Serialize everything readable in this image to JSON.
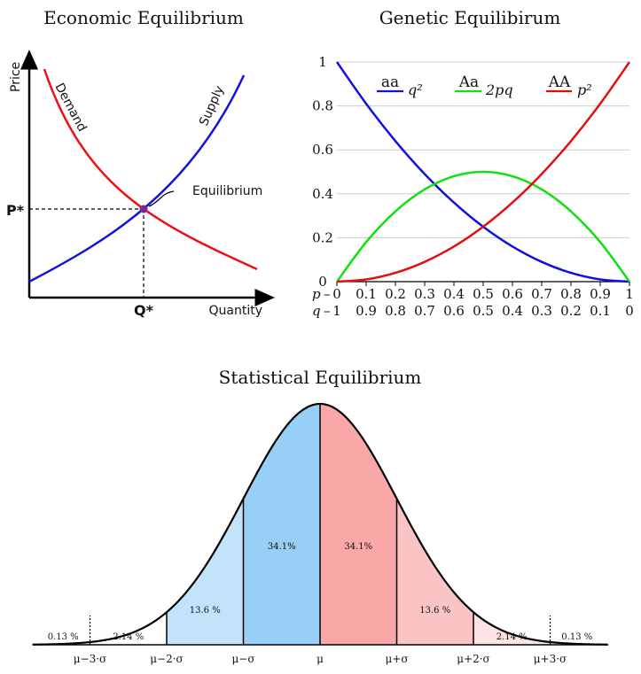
{
  "chart_data": [
    {
      "type": "line",
      "title": "Economic Equilibrium",
      "xlabel": "Quantity",
      "ylabel": "Price",
      "series": [
        {
          "name": "Demand",
          "color": "#ee1111"
        },
        {
          "name": "Supply",
          "color": "#1111dd"
        }
      ],
      "equilibrium_label": "Equilibrium",
      "price_marker": "P*",
      "quantity_marker": "Q*",
      "equilibrium_color": "#7a2a8f"
    },
    {
      "type": "line",
      "title": "Genetic Equilibirum",
      "x": [
        0,
        0.1,
        0.2,
        0.3,
        0.4,
        0.5,
        0.6,
        0.7,
        0.8,
        0.9,
        1
      ],
      "ylim": [
        0,
        1
      ],
      "y_ticks": [
        "0",
        "0.2",
        "0.4",
        "0.6",
        "0.8",
        "1"
      ],
      "p_row_label": "p",
      "q_row_label": "q",
      "p_ticks": [
        "0",
        "0.1",
        "0.2",
        "0.3",
        "0.4",
        "0.5",
        "0.6",
        "0.7",
        "0.8",
        "0.9",
        "1"
      ],
      "q_ticks": [
        "1",
        "0.9",
        "0.8",
        "0.7",
        "0.6",
        "0.5",
        "0.4",
        "0.3",
        "0.2",
        "0.1",
        "0"
      ],
      "series": [
        {
          "name": "aa",
          "formula": "q²",
          "color": "#1010e0",
          "values": [
            1,
            0.81,
            0.64,
            0.49,
            0.36,
            0.25,
            0.16,
            0.09,
            0.04,
            0.01,
            0
          ]
        },
        {
          "name": "Aa",
          "formula": "2pq",
          "color": "#10e010",
          "values": [
            0,
            0.18,
            0.32,
            0.42,
            0.48,
            0.5,
            0.48,
            0.42,
            0.32,
            0.18,
            0
          ]
        },
        {
          "name": "AA",
          "formula": "p²",
          "color": "#e01010",
          "values": [
            0,
            0.01,
            0.04,
            0.09,
            0.16,
            0.25,
            0.36,
            0.49,
            0.64,
            0.81,
            1
          ]
        }
      ]
    },
    {
      "type": "area",
      "title": "Statistical Equilibrium",
      "x_ticks": [
        "μ−3·σ",
        "μ−2·σ",
        "μ−σ",
        "μ",
        "μ+σ",
        "μ+2·σ",
        "μ+3·σ"
      ],
      "regions": [
        {
          "label": "0.13 %",
          "from": -4,
          "to": -3,
          "color": "#ffffff"
        },
        {
          "label": "2.14 %",
          "from": -3,
          "to": -2,
          "color": "#ffffff"
        },
        {
          "label": "13.6 %",
          "from": -2,
          "to": -1,
          "color": "#c3e3fa"
        },
        {
          "label": "34.1%",
          "from": -1,
          "to": 0,
          "color": "#97cff6"
        },
        {
          "label": "34.1%",
          "from": 0,
          "to": 1,
          "color": "#f9a7a7"
        },
        {
          "label": "13.6 %",
          "from": 1,
          "to": 2,
          "color": "#fbc4c4"
        },
        {
          "label": "2.14 %",
          "from": 2,
          "to": 3,
          "color": "#fde3e3"
        },
        {
          "label": "0.13 %",
          "from": 3,
          "to": 4,
          "color": "#ffffff"
        }
      ]
    }
  ]
}
